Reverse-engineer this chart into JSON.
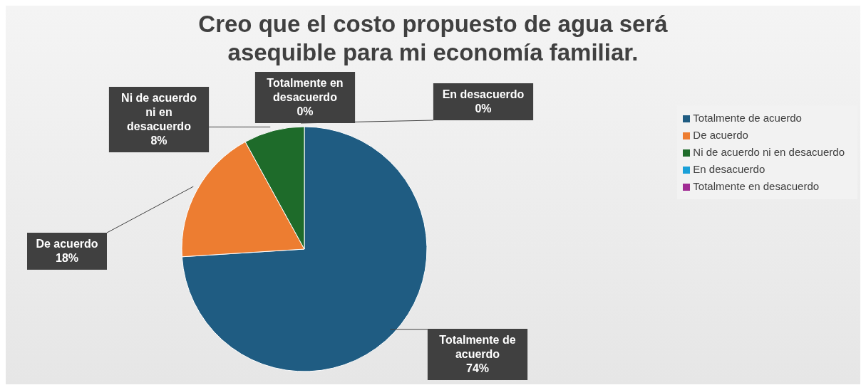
{
  "chart_data": {
    "type": "pie",
    "title": "Creo que el costo propuesto de agua será asequible para mi economía familiar.",
    "categories": [
      "Totalmente de acuerdo",
      "De acuerdo",
      "Ni de acuerdo ni en desacuerdo",
      "En desacuerdo",
      "Totalmente en desacuerdo"
    ],
    "values": [
      74,
      18,
      8,
      0,
      0
    ],
    "value_labels": [
      "74%",
      "18%",
      "8%",
      "0%",
      "0%"
    ],
    "colors": [
      "#1f5c82",
      "#ed7d31",
      "#1e6b2a",
      "#1aa0d8",
      "#a02b93"
    ],
    "legend": "right"
  }
}
